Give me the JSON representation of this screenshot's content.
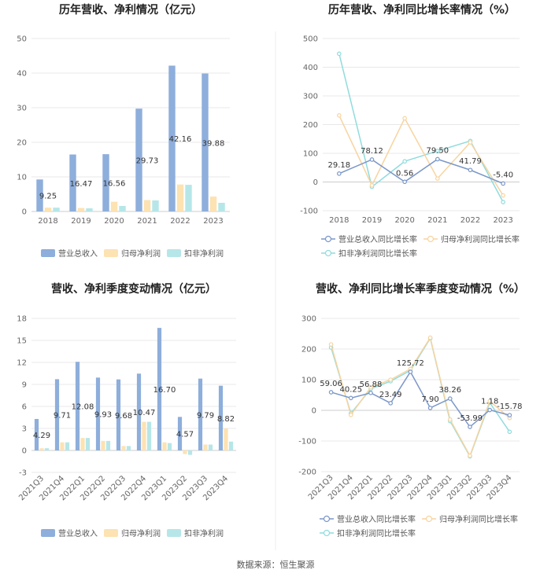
{
  "source": "数据来源：恒生聚源",
  "colors": {
    "revenue": "#8eaedb",
    "net": "#fde2b2",
    "deduct": "#b6e6e8",
    "revLine": "#7b97c9",
    "netLine": "#f7d49f",
    "deductLine": "#90dcdd"
  },
  "chart_data": [
    {
      "type": "bar",
      "title": "历年营收、净利情况（亿元）",
      "categories": [
        "2018",
        "2019",
        "2020",
        "2021",
        "2022",
        "2023"
      ],
      "ylim": [
        0,
        50
      ],
      "yticks": [
        "0",
        "10",
        "20",
        "30",
        "40",
        "50"
      ],
      "series": [
        {
          "name": "营业总收入",
          "values": [
            9.25,
            16.47,
            16.56,
            29.73,
            42.16,
            39.88
          ]
        },
        {
          "name": "归母净利润",
          "values": [
            1.1,
            1.0,
            2.8,
            3.3,
            7.8,
            4.3
          ]
        },
        {
          "name": "扣非净利润",
          "values": [
            1.1,
            0.9,
            1.6,
            3.2,
            7.7,
            2.5
          ]
        }
      ],
      "labels": [
        "9.25",
        "16.47",
        "16.56",
        "29.73",
        "42.16",
        "39.88"
      ]
    },
    {
      "type": "line",
      "title": "历年营收、净利同比增长率情况（%）",
      "categories": [
        "2018",
        "2019",
        "2020",
        "2021",
        "2022",
        "2023"
      ],
      "ylim": [
        -100,
        500
      ],
      "yticks": [
        "-100",
        "0",
        "100",
        "200",
        "300",
        "400",
        "500"
      ],
      "series": [
        {
          "name": "营业总收入同比增长率",
          "values": [
            29.18,
            78.12,
            0.56,
            79.5,
            41.79,
            -5.4
          ]
        },
        {
          "name": "归母净利润同比增长率",
          "values": [
            232,
            -12,
            222,
            12,
            138,
            -47
          ]
        },
        {
          "name": "扣非净利润同比增长率",
          "values": [
            447,
            -17,
            72,
            108,
            143,
            -70
          ]
        }
      ],
      "labels": [
        "29.18",
        "78.12",
        "0.56",
        "79.50",
        "41.79",
        "-5.40"
      ]
    },
    {
      "type": "bar",
      "title": "营收、净利季度变动情况（亿元）",
      "categories": [
        "2021Q3",
        "2021Q4",
        "2022Q1",
        "2022Q2",
        "2022Q3",
        "2022Q4",
        "2023Q1",
        "2023Q2",
        "2023Q3",
        "2023Q4"
      ],
      "ylim": [
        -3,
        18
      ],
      "yticks": [
        "-3",
        "0",
        "3",
        "6",
        "9",
        "12",
        "15",
        "18"
      ],
      "series": [
        {
          "name": "营业总收入",
          "values": [
            4.29,
            9.71,
            12.08,
            9.93,
            9.68,
            10.47,
            16.7,
            4.57,
            9.79,
            8.82
          ]
        },
        {
          "name": "归母净利润",
          "values": [
            0.3,
            1.1,
            1.7,
            1.3,
            0.6,
            3.9,
            1.1,
            -0.5,
            0.8,
            3.0
          ]
        },
        {
          "name": "扣非净利润",
          "values": [
            0.3,
            1.1,
            1.7,
            1.3,
            0.6,
            3.9,
            1.0,
            -0.6,
            0.8,
            1.2
          ]
        }
      ],
      "labels": [
        "4.29",
        "9.71",
        "12.08",
        "9.93",
        "9.68",
        "10.47",
        "16.70",
        "4.57",
        "9.79",
        "8.82"
      ]
    },
    {
      "type": "line",
      "title": "营收、净利同比增长率季度变动情况（%）",
      "categories": [
        "2021Q3",
        "2021Q4",
        "2022Q1",
        "2022Q2",
        "2022Q3",
        "2022Q4",
        "2023Q1",
        "2023Q2",
        "2023Q3",
        "2023Q4"
      ],
      "ylim": [
        -200,
        300
      ],
      "yticks": [
        "-200",
        "-100",
        "0",
        "100",
        "200",
        "300"
      ],
      "series": [
        {
          "name": "营业总收入同比增长率",
          "values": [
            59.06,
            40.25,
            56.88,
            23.49,
            125.72,
            7.9,
            38.26,
            -53.99,
            1.18,
            -15.78
          ]
        },
        {
          "name": "归母净利润同比增长率",
          "values": [
            215,
            -15,
            75,
            100,
            135,
            237,
            -30,
            -148,
            30,
            -25
          ]
        },
        {
          "name": "扣非净利润同比增长率",
          "values": [
            205,
            -10,
            70,
            95,
            130,
            235,
            -35,
            -150,
            25,
            -70
          ]
        }
      ],
      "labels": [
        "59.06",
        "40.25",
        "56.88",
        "23.49",
        "125.72",
        "7.90",
        "38.26",
        "-53.99",
        "1.18",
        "-15.78"
      ]
    }
  ]
}
